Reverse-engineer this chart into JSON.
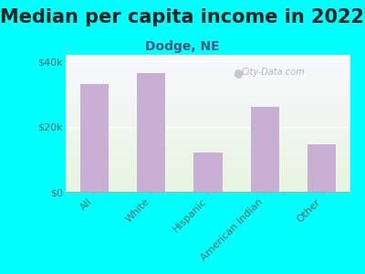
{
  "title": "Median per capita income in 2022",
  "subtitle": "Dodge, NE",
  "categories": [
    "All",
    "White",
    "Hispanic",
    "American Indian",
    "Other"
  ],
  "values": [
    33000,
    36500,
    12000,
    26000,
    14500
  ],
  "bar_color": "#c9afd4",
  "background_color": "#00ffff",
  "plot_bg_top": "#f8f8ff",
  "plot_bg_bottom": "#e8f5e0",
  "ylim": [
    0,
    42000
  ],
  "yticks": [
    0,
    20000,
    40000
  ],
  "ytick_labels": [
    "$0",
    "$20k",
    "$40k"
  ],
  "title_fontsize": 15,
  "subtitle_fontsize": 10,
  "title_color": "#222222",
  "subtitle_color": "#555577",
  "tick_label_color": "#666666",
  "watermark": "City-Data.com",
  "bar_width": 0.5
}
